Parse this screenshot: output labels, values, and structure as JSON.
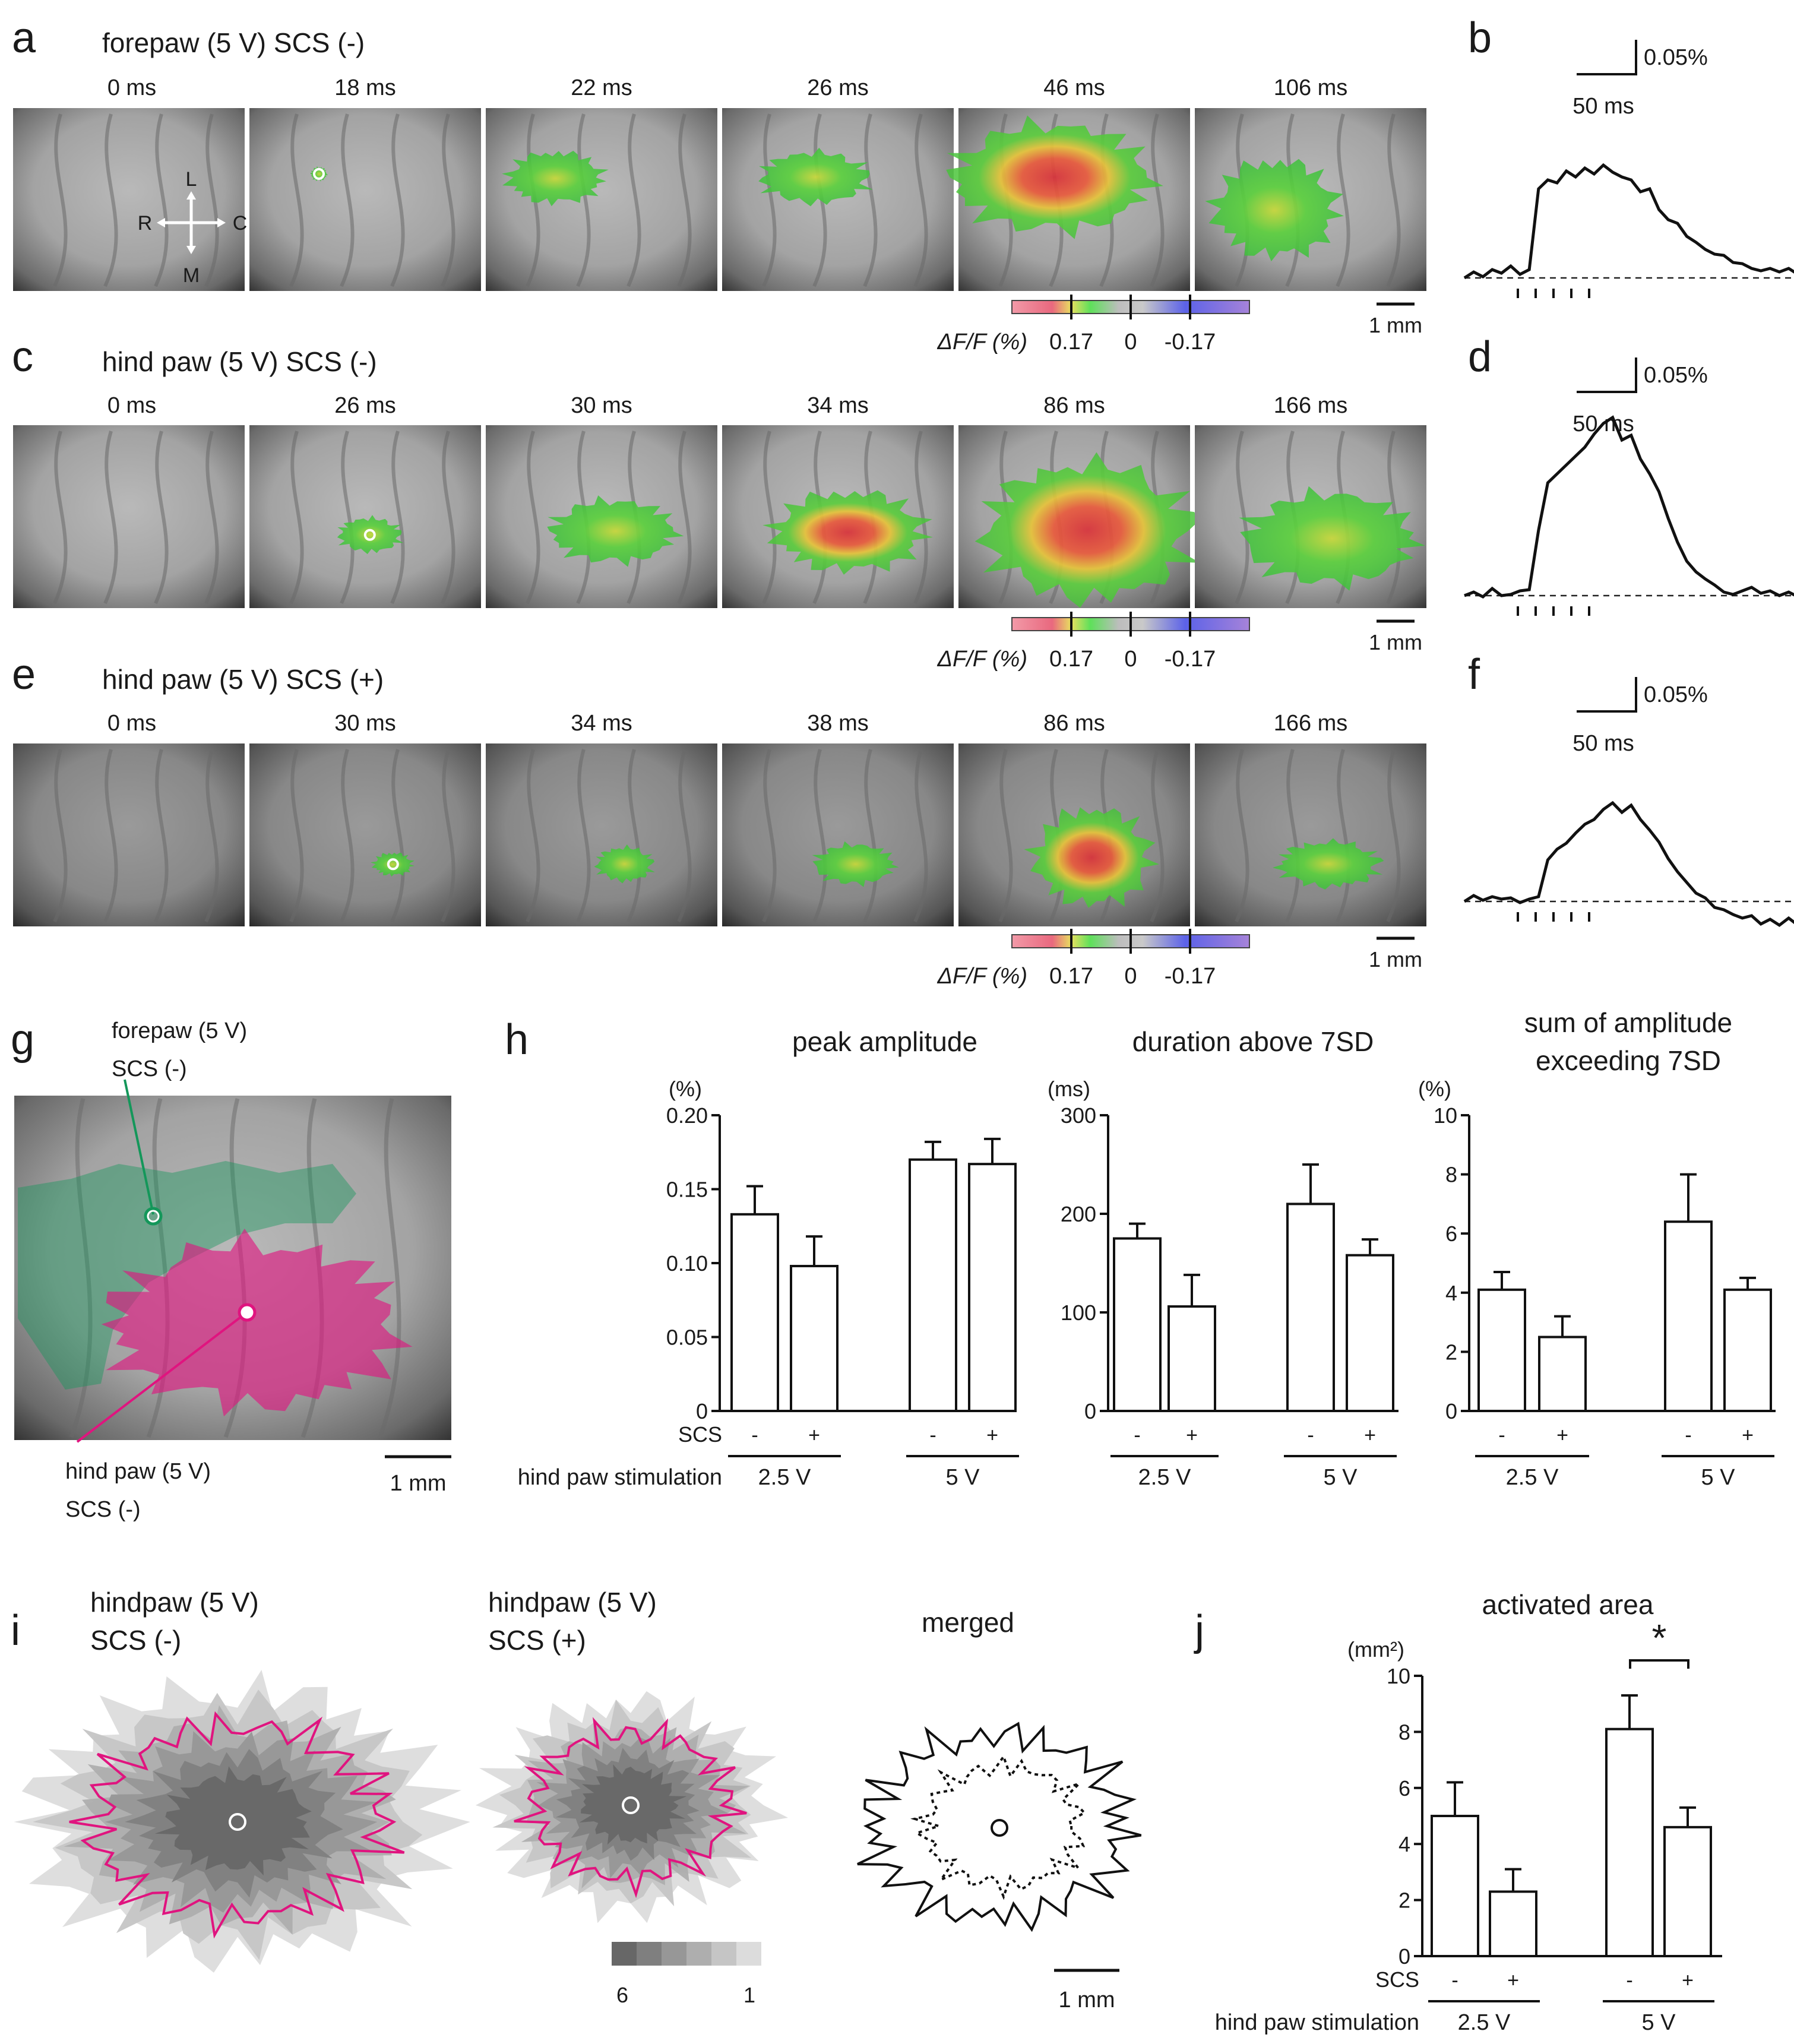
{
  "panels": {
    "a": {
      "letter": "a",
      "title": "forepaw (5 V) SCS (-)",
      "times": [
        "0 ms",
        "18 ms",
        "22 ms",
        "26 ms",
        "46 ms",
        "106 ms"
      ],
      "scale": "1 mm",
      "orientation": {
        "L": "L",
        "R": "R",
        "C": "C",
        "M": "M"
      }
    },
    "b": {
      "letter": "b",
      "scale_y": "0.05%",
      "scale_x": "50 ms"
    },
    "c": {
      "letter": "c",
      "title": "hind paw (5 V) SCS (-)",
      "times": [
        "0 ms",
        "26 ms",
        "30 ms",
        "34 ms",
        "86 ms",
        "166 ms"
      ],
      "scale": "1 mm"
    },
    "d": {
      "letter": "d",
      "scale_y": "0.05%",
      "scale_x": "50 ms"
    },
    "e": {
      "letter": "e",
      "title": "hind paw (5 V) SCS (+)",
      "times": [
        "0 ms",
        "30 ms",
        "34 ms",
        "38 ms",
        "86 ms",
        "166 ms"
      ],
      "scale": "1 mm"
    },
    "f": {
      "letter": "f",
      "scale_y": "0.05%",
      "scale_x": "50 ms"
    },
    "colorbar": {
      "label": "ΔF/F (%)",
      "ticks": [
        "0.17",
        "0",
        "-0.17"
      ]
    },
    "g": {
      "letter": "g",
      "forepaw_label_1": "forepaw (5 V)",
      "forepaw_label_2": "SCS (-)",
      "hindpaw_label_1": "hind paw (5 V)",
      "hindpaw_label_2": "SCS (-)",
      "scale": "1 mm",
      "colors": {
        "forepaw": "#14975a",
        "hindpaw": "#e0147f"
      }
    },
    "h": {
      "letter": "h",
      "scs_label": "SCS",
      "stim_label": "hind paw stimulation",
      "group_labels": [
        "2.5 V",
        "5 V"
      ],
      "scs_signs": [
        "-",
        "+",
        "-",
        "+"
      ]
    },
    "i": {
      "letter": "i",
      "titles": [
        [
          "hindpaw (5 V)",
          "SCS (-)"
        ],
        [
          "hindpaw (5 V)",
          "SCS (+)"
        ],
        [
          "merged",
          ""
        ]
      ],
      "legend_ticks": [
        "6",
        "1"
      ],
      "scale": "1 mm"
    },
    "j": {
      "letter": "j"
    }
  },
  "chart_data": [
    {
      "type": "bar",
      "title": "peak amplitude",
      "unit": "(%)",
      "categories": [
        "2.5 V -",
        "2.5 V +",
        "5 V -",
        "5 V +"
      ],
      "values": [
        0.133,
        0.098,
        0.17,
        0.167
      ],
      "errors": [
        0.019,
        0.02,
        0.012,
        0.017
      ],
      "ylim": [
        0,
        0.2
      ],
      "yticks": [
        "0",
        "0.05",
        "0.10",
        "0.15",
        "0.20"
      ]
    },
    {
      "type": "bar",
      "title": "duration above 7SD",
      "unit": "(ms)",
      "categories": [
        "2.5 V -",
        "2.5 V +",
        "5 V -",
        "5 V +"
      ],
      "values": [
        175,
        106,
        210,
        158
      ],
      "errors": [
        15,
        32,
        40,
        16
      ],
      "ylim": [
        0,
        300
      ],
      "yticks": [
        "0",
        "100",
        "200",
        "300"
      ]
    },
    {
      "type": "bar",
      "title_1": "sum of amplitude",
      "title_2": "exceeding 7SD",
      "unit": "(%)",
      "categories": [
        "2.5 V -",
        "2.5 V +",
        "5 V -",
        "5 V +"
      ],
      "values": [
        4.1,
        2.5,
        6.4,
        4.1
      ],
      "errors": [
        0.6,
        0.7,
        1.6,
        0.4
      ],
      "ylim": [
        0,
        10
      ],
      "yticks": [
        "0",
        "2",
        "4",
        "6",
        "8",
        "10"
      ]
    },
    {
      "type": "bar",
      "title": "activated area",
      "unit": "(mm²)",
      "categories": [
        "2.5 V -",
        "2.5 V +",
        "5 V -",
        "5 V +"
      ],
      "values": [
        5.0,
        2.3,
        8.1,
        4.6
      ],
      "errors": [
        1.2,
        0.8,
        1.2,
        0.7
      ],
      "ylim": [
        0,
        10
      ],
      "yticks": [
        "0",
        "2",
        "4",
        "6",
        "8",
        "10"
      ],
      "annotation": "*",
      "scs_label": "SCS",
      "stim_label": "hind paw stimulation",
      "group_labels": [
        "2.5 V",
        "5 V"
      ]
    }
  ]
}
